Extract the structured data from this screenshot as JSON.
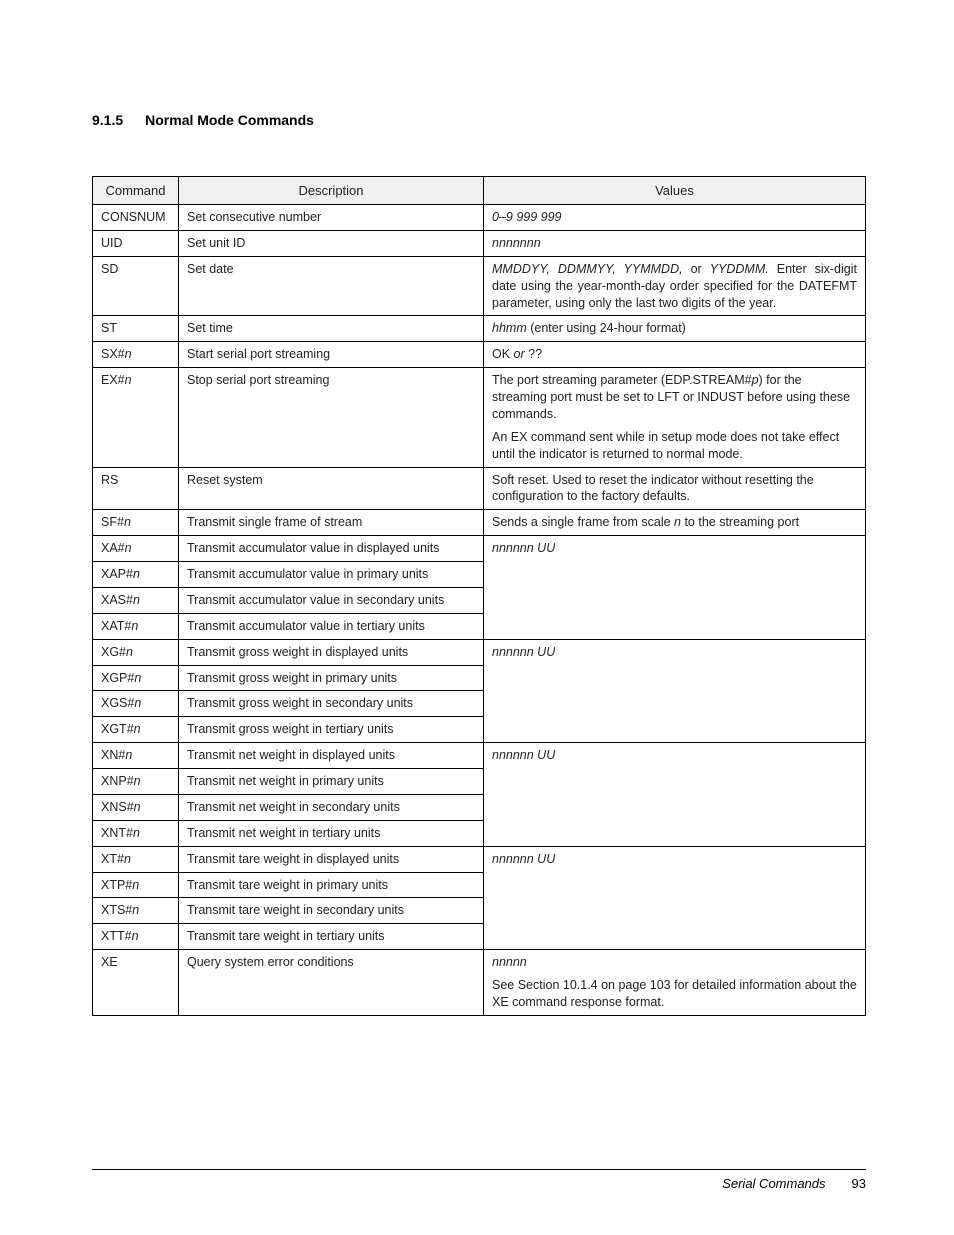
{
  "section": {
    "number": "9.1.5",
    "title": "Normal Mode Commands"
  },
  "table": {
    "headers": {
      "command": "Command",
      "description": "Description",
      "values": "Values"
    },
    "rows": {
      "consnum": {
        "cmd": "CONSNUM",
        "desc": "Set consecutive number",
        "val_i": "0–9 999 999"
      },
      "uid": {
        "cmd": "UID",
        "desc": "Set unit ID",
        "val_i": "nnnnnnn"
      },
      "sd": {
        "cmd": "SD",
        "desc": "Set date",
        "val_i_lead": "MMDDYY, DDMMYY, YYMMDD, ",
        "val_or": "or ",
        "val_i_yyddmm": "YYDDMM.",
        "val_tail": " Enter six-digit date using the year-month-day order specified for the DATEFMT parameter, using only the last two digits of the year."
      },
      "st": {
        "cmd": "ST",
        "desc": "Set time",
        "val_i": "hhmm",
        "val_tail": " (enter using 24-hour format)"
      },
      "sx": {
        "cmd_pre": "SX#",
        "cmd_i": "n",
        "desc": "Start serial port streaming",
        "val_pre": "OK ",
        "val_i": "or ",
        "val_post": "??"
      },
      "ex": {
        "cmd_pre": "EX#",
        "cmd_i": "n",
        "desc": "Stop serial port streaming",
        "p1a": "The port streaming parameter (EDP.STREAM#",
        "p1i": "p",
        "p1b": ") for the streaming port must be set to LFT or INDUST before using these commands.",
        "p2": "An EX command sent while in setup mode does not take effect until the indicator is returned to normal mode."
      },
      "rs": {
        "cmd": "RS",
        "desc": "Reset system",
        "val": "Soft reset. Used to reset the indicator without resetting the configuration to the factory defaults."
      },
      "sf": {
        "cmd_pre": "SF#",
        "cmd_i": "n",
        "desc": "Transmit single frame of stream",
        "val_pre": "Sends a single frame from scale ",
        "val_i": "n",
        "val_post": " to the streaming port"
      },
      "xa": {
        "cmd_pre": "XA#",
        "cmd_i": "n",
        "desc": "Transmit accumulator value in displayed units",
        "val_i": "nnnnnn UU"
      },
      "xap": {
        "cmd_pre": "XAP#",
        "cmd_i": "n",
        "desc": "Transmit accumulator value in primary units"
      },
      "xas": {
        "cmd_pre": "XAS#",
        "cmd_i": "n",
        "desc": "Transmit accumulator value in secondary units"
      },
      "xat": {
        "cmd_pre": "XAT#",
        "cmd_i": "n",
        "desc": "Transmit accumulator value in tertiary units"
      },
      "xg": {
        "cmd_pre": "XG#",
        "cmd_i": "n",
        "desc": "Transmit gross weight in displayed units",
        "val_i": "nnnnnn UU"
      },
      "xgp": {
        "cmd_pre": "XGP#",
        "cmd_i": "n",
        "desc": "Transmit gross weight in primary units"
      },
      "xgs": {
        "cmd_pre": "XGS#",
        "cmd_i": "n",
        "desc": "Transmit gross weight in secondary units"
      },
      "xgt": {
        "cmd_pre": "XGT#",
        "cmd_i": "n",
        "desc": "Transmit gross weight in tertiary units"
      },
      "xn": {
        "cmd_pre": "XN#",
        "cmd_i": "n",
        "desc": "Transmit net weight in displayed units",
        "val_i": "nnnnnn UU"
      },
      "xnp": {
        "cmd_pre": "XNP#",
        "cmd_i": "n",
        "desc": "Transmit net weight in primary units"
      },
      "xns": {
        "cmd_pre": "XNS#",
        "cmd_i": "n",
        "desc": "Transmit net weight in secondary units"
      },
      "xnt": {
        "cmd_pre": "XNT#",
        "cmd_i": "n",
        "desc": "Transmit net weight in tertiary units"
      },
      "xt": {
        "cmd_pre": "XT#",
        "cmd_i": "n",
        "desc": "Transmit tare weight in displayed units",
        "val_i": "nnnnnn UU"
      },
      "xtp": {
        "cmd_pre": "XTP#",
        "cmd_i": "n",
        "desc": "Transmit tare weight in primary units"
      },
      "xts": {
        "cmd_pre": "XTS#",
        "cmd_i": "n",
        "desc": "Transmit tare weight in secondary units"
      },
      "xtt": {
        "cmd_pre": "XTT#",
        "cmd_i": "n",
        "desc": "Transmit tare weight in tertiary units"
      },
      "xe": {
        "cmd": "XE",
        "desc": "Query system error conditions",
        "val_i": "nnnnn",
        "p2": "See Section 10.1.4 on page 103  for detailed information about the XE command response format."
      }
    }
  },
  "footer": {
    "title": "Serial Commands",
    "page": "93"
  }
}
